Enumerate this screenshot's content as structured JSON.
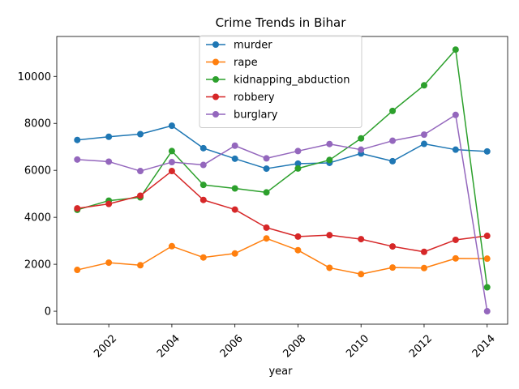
{
  "chart_data": {
    "type": "line",
    "title": "Crime Trends in Bihar",
    "xlabel": "year",
    "ylabel": "",
    "x": [
      2001,
      2002,
      2003,
      2004,
      2005,
      2006,
      2007,
      2008,
      2009,
      2010,
      2011,
      2012,
      2013,
      2014
    ],
    "xlim": [
      2000.35,
      2014.65
    ],
    "ylim": [
      -550,
      11700
    ],
    "xticks": [
      2002,
      2004,
      2006,
      2008,
      2010,
      2012,
      2014
    ],
    "yticks": [
      0,
      2000,
      4000,
      6000,
      8000,
      10000
    ],
    "grid": false,
    "legend_position": "top-center",
    "series": [
      {
        "name": "murder",
        "color": "#1f77b4",
        "values": [
          7293,
          7430,
          7542,
          7900,
          6943,
          6495,
          6073,
          6285,
          6318,
          6717,
          6389,
          7127,
          6880,
          6806
        ]
      },
      {
        "name": "rape",
        "color": "#ff7f0e",
        "values": [
          1760,
          2070,
          1960,
          2770,
          2290,
          2460,
          3100,
          2600,
          1850,
          1580,
          1860,
          1840,
          2250,
          2240
        ]
      },
      {
        "name": "kidnapping_abduction",
        "color": "#2ca02c",
        "values": [
          4320,
          4710,
          4850,
          6820,
          5380,
          5230,
          5060,
          6080,
          6440,
          7360,
          8530,
          9620,
          11140,
          1020
        ]
      },
      {
        "name": "robbery",
        "color": "#d62728",
        "values": [
          4380,
          4570,
          4920,
          5970,
          4740,
          4330,
          3560,
          3180,
          3240,
          3070,
          2760,
          2530,
          3040,
          3210
        ]
      },
      {
        "name": "burglary",
        "color": "#9467bd",
        "values": [
          6460,
          6370,
          5970,
          6350,
          6230,
          7050,
          6510,
          6820,
          7120,
          6880,
          7260,
          7520,
          8360,
          0
        ]
      }
    ]
  }
}
